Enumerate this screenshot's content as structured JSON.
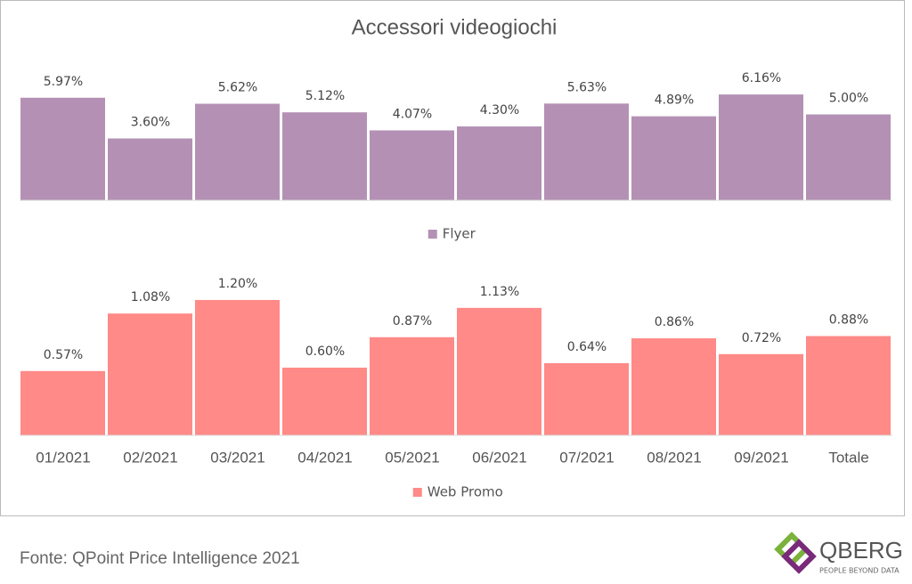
{
  "chart_data": [
    {
      "type": "bar",
      "title": "Accessori videogiochi",
      "series": [
        {
          "name": "Flyer",
          "color": "#b491b4",
          "values": [
            5.97,
            3.6,
            5.62,
            5.12,
            4.07,
            4.3,
            5.63,
            4.89,
            6.16,
            5.0
          ],
          "value_labels": [
            "5.97%",
            "3.60%",
            "5.62%",
            "5.12%",
            "4.07%",
            "4.30%",
            "5.63%",
            "4.89%",
            "6.16%",
            "5.00%"
          ]
        }
      ]
    },
    {
      "type": "bar",
      "categories": [
        "01/2021",
        "02/2021",
        "03/2021",
        "04/2021",
        "05/2021",
        "06/2021",
        "07/2021",
        "08/2021",
        "09/2021",
        "Totale"
      ],
      "series": [
        {
          "name": "Web Promo",
          "color": "#ff8a87",
          "values": [
            0.57,
            1.08,
            1.2,
            0.6,
            0.87,
            1.13,
            0.64,
            0.86,
            0.72,
            0.88
          ],
          "value_labels": [
            "0.57%",
            "1.08%",
            "1.20%",
            "0.60%",
            "0.87%",
            "1.13%",
            "0.64%",
            "0.86%",
            "0.72%",
            "0.88%"
          ]
        }
      ]
    }
  ],
  "footer": {
    "source": "Fonte: QPoint Price Intelligence 2021"
  },
  "logo": {
    "name": "QBERG",
    "tagline": "PEOPLE BEYOND DATA"
  }
}
